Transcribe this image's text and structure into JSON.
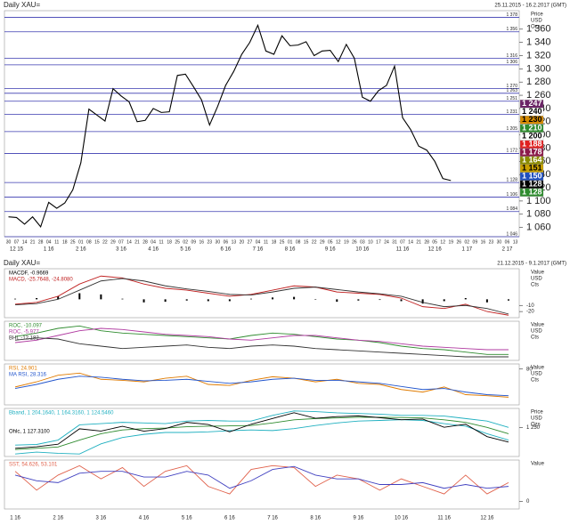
{
  "chart_data": [
    {
      "type": "line",
      "title": "Daily XAU=",
      "subtitle": "25.11.2015 - 16.2.2017 (GMT)",
      "axis_label": [
        "Price",
        "USD",
        "Ozs"
      ],
      "categories": [
        "30",
        "07",
        "14",
        "21",
        "28",
        "04",
        "11",
        "18",
        "25",
        "01",
        "08",
        "15",
        "22",
        "29",
        "07",
        "14",
        "21",
        "28",
        "04",
        "11",
        "18",
        "25",
        "02",
        "09",
        "16",
        "23",
        "30",
        "06",
        "13",
        "20",
        "27",
        "04",
        "11",
        "18",
        "25",
        "01",
        "08",
        "15",
        "22",
        "29",
        "05",
        "12",
        "19",
        "26",
        "03",
        "10",
        "17",
        "24",
        "31",
        "07",
        "14",
        "21",
        "28",
        "05",
        "12",
        "19",
        "26",
        "02",
        "09",
        "16",
        "23",
        "30",
        "06",
        "13"
      ],
      "months": [
        null,
        "12 15",
        null,
        null,
        null,
        "1 16",
        null,
        null,
        null,
        "2 16",
        null,
        null,
        null,
        null,
        "3 16",
        null,
        null,
        null,
        "4 16",
        null,
        null,
        null,
        "5 16",
        null,
        null,
        null,
        null,
        "6 16",
        null,
        null,
        null,
        "7 16",
        null,
        null,
        null,
        "8 16",
        null,
        null,
        null,
        null,
        "9 16",
        null,
        null,
        null,
        "10 16",
        null,
        null,
        null,
        null,
        "11 16",
        null,
        null,
        null,
        "12 16",
        null,
        null,
        null,
        "1 17",
        null,
        null,
        null,
        null,
        "2 17",
        null
      ],
      "series": [
        {
          "color": "#000000",
          "values": [
            1076,
            1075,
            1065,
            1076,
            1061,
            1098,
            1089,
            1097,
            1117,
            1158,
            1239,
            1230,
            1221,
            1270,
            1259,
            1250,
            1220,
            1222,
            1240,
            1234,
            1235,
            1290,
            1292,
            1273,
            1253,
            1215,
            1243,
            1275,
            1296,
            1322,
            1340,
            1366,
            1327,
            1322,
            1350,
            1335,
            1336,
            1341,
            1320,
            1327,
            1328,
            1311,
            1337,
            1316,
            1257,
            1251,
            1267,
            1275,
            1304,
            1226,
            1208,
            1183,
            1177,
            1160,
            1134,
            1131,
            null,
            null,
            null,
            null,
            null,
            null,
            null,
            null
          ]
        }
      ],
      "ylim": [
        1046,
        1388
      ],
      "yticks": [
        {
          "value": 1060,
          "label": "1 060"
        },
        {
          "value": 1080,
          "label": "1 080"
        },
        {
          "value": 1100,
          "label": "1 100"
        },
        {
          "value": 1120,
          "label": "1 120"
        },
        {
          "value": 1140,
          "label": "1 140"
        },
        {
          "value": 1160,
          "label": "1 160"
        },
        {
          "value": 1180,
          "label": "1 180"
        },
        {
          "value": 1200,
          "label": "1 200"
        },
        {
          "value": 1220,
          "label": "1 220"
        },
        {
          "value": 1240,
          "label": "1 240"
        },
        {
          "value": 1260,
          "label": "1 260"
        },
        {
          "value": 1280,
          "label": "1 280"
        },
        {
          "value": 1300,
          "label": "1 300"
        },
        {
          "value": 1320,
          "label": "1 320"
        },
        {
          "value": 1340,
          "label": "1 340"
        },
        {
          "value": 1360,
          "label": "1 360"
        }
      ],
      "levels": [
        {
          "value": 1378,
          "label": "1 378"
        },
        {
          "value": 1356,
          "label": "1 356"
        },
        {
          "value": 1316,
          "label": "1 316"
        },
        {
          "value": 1306,
          "label": "1 306"
        },
        {
          "value": 1270,
          "label": "1 270"
        },
        {
          "value": 1263,
          "label": "1 263"
        },
        {
          "value": 1251,
          "label": "1 251"
        },
        {
          "value": 1231,
          "label": "1 231"
        },
        {
          "value": 1205,
          "label": "1 205"
        },
        {
          "value": 1172,
          "label": "1 172"
        },
        {
          "value": 1128,
          "label": "1 128"
        },
        {
          "value": 1106,
          "label": "1 106"
        },
        {
          "value": 1084,
          "label": "1 084"
        },
        {
          "value": 1046,
          "label": "1 046"
        }
      ],
      "price_tags": [
        {
          "value": 1247,
          "label": "1 247",
          "color": "#6b2466"
        },
        {
          "value": 1240,
          "label": "1 240",
          "color": "#ffffff"
        },
        {
          "value": 1230,
          "label": "1 230",
          "color": "#d48a00"
        },
        {
          "value": 1210,
          "label": "1 210",
          "color": "#2e8b2e"
        },
        {
          "value": 1200,
          "label": "1 200",
          "color": "#ffffff"
        },
        {
          "value": 1188,
          "label": "1 188",
          "color": "#e02020"
        },
        {
          "value": 1178,
          "label": "1 178",
          "color": "#8b1a4a"
        },
        {
          "value": 1164,
          "label": "1 164",
          "color": "#8b8b00"
        },
        {
          "value": 1151,
          "label": "1 151",
          "color": "#c8a000"
        },
        {
          "value": 1150,
          "label": "1 150",
          "color": "#1f4fbf"
        },
        {
          "value": 1128,
          "label": "1 128",
          "color": "#000000"
        },
        {
          "value": 1128,
          "label": "1 128",
          "color": "#2e8b2e"
        }
      ]
    },
    {
      "type": "line",
      "title": "Daily XAU=",
      "subtitle": "21.12.2015 - 9.1.2017 (GMT)",
      "axis_label": [
        "Value",
        "USD",
        "Cts"
      ],
      "series": [
        {
          "name": "MACDF, -0.9669",
          "kind": "histogram",
          "color": "#000000",
          "values": [
            1,
            2,
            5,
            10,
            8,
            1,
            -5,
            -4,
            -2,
            -3,
            -3,
            1,
            3,
            4,
            0,
            -4,
            -2,
            -1,
            -3,
            -7,
            -3,
            2,
            -5,
            -2
          ]
        },
        {
          "name": "MACD, -25.7648, -24.8080",
          "color": "#c02020",
          "values": [
            -8,
            -5,
            5,
            25,
            38,
            35,
            25,
            18,
            15,
            10,
            5,
            8,
            15,
            22,
            20,
            12,
            10,
            8,
            2,
            -12,
            -15,
            -8,
            -20,
            -26
          ]
        },
        {
          "color": "#333333",
          "values": [
            -9,
            -7,
            0,
            15,
            30,
            34,
            30,
            22,
            17,
            13,
            8,
            7,
            12,
            18,
            20,
            16,
            12,
            9,
            5,
            -5,
            -12,
            -10,
            -15,
            -24
          ]
        }
      ],
      "ylim": [
        -30,
        50
      ],
      "yticks": [
        -10,
        -20
      ]
    },
    {
      "type": "line",
      "axis_label": [
        "Value",
        "USD",
        "Cts"
      ],
      "series": [
        {
          "name": "ROC, -10.097",
          "color": "#2e8b2e",
          "values": [
            5,
            8,
            12,
            14,
            10,
            8,
            7,
            6,
            5,
            4,
            3,
            6,
            8,
            7,
            5,
            3,
            2,
            0,
            -3,
            -5,
            -6,
            -8,
            -10,
            -10
          ]
        },
        {
          "name": "ROC, -5.977",
          "color": "#b03aa0",
          "values": [
            0,
            2,
            6,
            10,
            12,
            11,
            9,
            7,
            6,
            5,
            3,
            2,
            4,
            6,
            6,
            4,
            2,
            1,
            -1,
            -3,
            -4,
            -5,
            -6,
            -6
          ]
        },
        {
          "name": "BHI, -12.182",
          "color": "#333333",
          "values": [
            2,
            4,
            3,
            -1,
            -3,
            -5,
            -4,
            -3,
            -2,
            -4,
            -5,
            -3,
            -2,
            -3,
            -5,
            -6,
            -7,
            -8,
            -9,
            -10,
            -11,
            -12,
            -12,
            -12
          ]
        }
      ],
      "ylim": [
        -15,
        18
      ]
    },
    {
      "type": "line",
      "axis_label": [
        "Value",
        "USD",
        "Cts"
      ],
      "series": [
        {
          "name": "RSI, 24.901",
          "color": "#e07b00",
          "values": [
            45,
            55,
            68,
            72,
            60,
            58,
            55,
            62,
            66,
            50,
            48,
            58,
            65,
            62,
            55,
            60,
            52,
            50,
            40,
            35,
            45,
            30,
            28,
            25
          ]
        },
        {
          "name": "MA RSI, 28.316",
          "color": "#2255cc",
          "values": [
            42,
            50,
            60,
            66,
            64,
            60,
            57,
            58,
            60,
            56,
            52,
            55,
            60,
            62,
            58,
            58,
            55,
            52,
            46,
            40,
            42,
            35,
            30,
            28
          ]
        }
      ],
      "ylim": [
        10,
        90
      ],
      "yticks": [
        80
      ]
    },
    {
      "type": "line",
      "axis_label": [
        "Price",
        "USD",
        "Ozs"
      ],
      "series": [
        {
          "name": "Bband, 1 204.1640, 1 164.3160, 1 124.5460",
          "color": "#20b0c0",
          "values": [
            1110,
            1115,
            1150,
            1270,
            1280,
            1290,
            1285,
            1280,
            1300,
            1305,
            1300,
            1300,
            1345,
            1380,
            1375,
            1365,
            1360,
            1355,
            1345,
            1345,
            1340,
            1320,
            1300,
            1250
          ]
        },
        {
          "color": "#2e8b2e",
          "values": [
            1075,
            1085,
            1095,
            1150,
            1200,
            1230,
            1240,
            1245,
            1255,
            1260,
            1262,
            1265,
            1285,
            1310,
            1320,
            1325,
            1330,
            1330,
            1328,
            1325,
            1310,
            1290,
            1250,
            1200
          ]
        },
        {
          "color": "#20b0c0",
          "values": [
            1040,
            1055,
            1045,
            1040,
            1120,
            1170,
            1195,
            1210,
            1210,
            1215,
            1224,
            1230,
            1225,
            1240,
            1265,
            1285,
            1300,
            1305,
            1311,
            1305,
            1280,
            1260,
            1200,
            1150
          ]
        },
        {
          "name": "Ohlc, 1 127.3100",
          "color": "#000000",
          "values": [
            1085,
            1097,
            1117,
            1239,
            1221,
            1259,
            1220,
            1240,
            1290,
            1273,
            1215,
            1275,
            1320,
            1366,
            1322,
            1335,
            1341,
            1327,
            1311,
            1316,
            1251,
            1275,
            1177,
            1134
          ]
        }
      ],
      "ylim": [
        1020,
        1400
      ],
      "yticks": [
        {
          "value": 1250,
          "label": "1 250"
        }
      ]
    },
    {
      "type": "line",
      "axis_label": [
        "Value"
      ],
      "categories": [
        "1 16",
        null,
        "2 16",
        null,
        "3 16",
        null,
        "4 16",
        null,
        "5 16",
        null,
        "6 16",
        null,
        "7 16",
        null,
        "8 16",
        null,
        "9 16",
        null,
        "10 16",
        null,
        "11 16",
        null,
        "12 16",
        null
      ],
      "series": [
        {
          "name": "SST, 54.626, 53.101",
          "color": "#e0604a",
          "values": [
            80,
            30,
            70,
            95,
            60,
            90,
            40,
            80,
            95,
            40,
            20,
            85,
            95,
            90,
            40,
            70,
            60,
            30,
            60,
            40,
            20,
            70,
            20,
            50
          ]
        },
        {
          "color": "#4040c0",
          "values": [
            70,
            55,
            50,
            75,
            80,
            80,
            65,
            65,
            80,
            70,
            35,
            55,
            85,
            93,
            70,
            60,
            60,
            45,
            45,
            50,
            35,
            45,
            35,
            40
          ]
        }
      ],
      "ylim": [
        -20,
        110
      ],
      "yticks": [
        0
      ]
    }
  ]
}
